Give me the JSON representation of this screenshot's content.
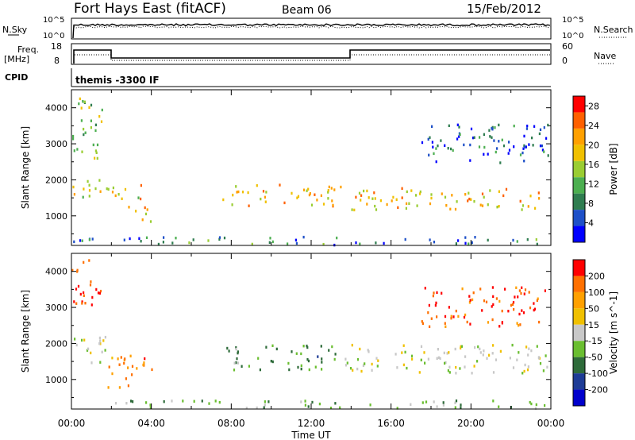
{
  "header": {
    "station": "Fort Hays East (fitACF)",
    "beam": "Beam 06",
    "date": "15/Feb/2012"
  },
  "noise_panel": {
    "left_label": "N.Sky",
    "right_label": "N.Search",
    "left_ticks": [
      "10^5",
      "10^0"
    ],
    "right_ticks": [
      "10^5",
      "10^0"
    ]
  },
  "freq_panel": {
    "left_label_1": "Freq.",
    "left_label_2": "[MHz]",
    "right_label": "Nave",
    "left_ticks": [
      "18",
      "8"
    ],
    "right_ticks": [
      "60",
      "0"
    ]
  },
  "cpid_panel": {
    "label": "CPID",
    "value": "themis -3300 IF"
  },
  "colors": {
    "power": [
      "#0000ff",
      "#1e50c8",
      "#2f7d50",
      "#4caf50",
      "#9acd32",
      "#f0c000",
      "#ffa000",
      "#ff6000",
      "#ff0000"
    ],
    "velocity": [
      "#0000cc",
      "#1e3c96",
      "#2e6b3a",
      "#6abe30",
      "#c8c8c8",
      "#f0c000",
      "#ffa000",
      "#ff7000",
      "#ff0000"
    ]
  },
  "chart_data": [
    {
      "type": "heatmap",
      "title": "",
      "xlabel": "",
      "ylabel": "Slant Range [km]",
      "xlim": [
        "00:00",
        "24:00"
      ],
      "ylim": [
        180,
        4500
      ],
      "yticks": [
        1000,
        2000,
        3000,
        4000
      ],
      "colorbar": {
        "label": "Power [dB]",
        "ticks": [
          4,
          8,
          12,
          16,
          20,
          24,
          28
        ],
        "range": [
          0,
          30
        ]
      },
      "regions": [
        {
          "t0": 0.0,
          "t1": 1.8,
          "r0": 1500,
          "r1": 2100,
          "value": 15
        },
        {
          "t0": 1.8,
          "t1": 3.6,
          "r0": 1400,
          "r1": 1900,
          "value": 18
        },
        {
          "t0": 2.8,
          "t1": 4.0,
          "r0": 800,
          "r1": 1300,
          "value": 22
        },
        {
          "t0": 0.0,
          "t1": 1.5,
          "r0": 2600,
          "r1": 4400,
          "value": 14
        },
        {
          "t0": 7.5,
          "t1": 13.5,
          "r0": 1300,
          "r1": 1900,
          "value": 18
        },
        {
          "t0": 14.0,
          "t1": 24.0,
          "r0": 1200,
          "r1": 1800,
          "value": 20
        },
        {
          "t0": 17.5,
          "t1": 24.0,
          "r0": 2500,
          "r1": 3600,
          "value": 6
        },
        {
          "t0": 0.0,
          "t1": 24.0,
          "r0": 180,
          "r1": 450,
          "value": 8
        }
      ]
    },
    {
      "type": "heatmap",
      "title": "",
      "xlabel": "Time UT",
      "ylabel": "Slant Range [km]",
      "xlim": [
        "00:00",
        "24:00"
      ],
      "ylim": [
        180,
        4500
      ],
      "xticks": [
        "00:00",
        "04:00",
        "08:00",
        "12:00",
        "16:00",
        "20:00",
        "00:00"
      ],
      "yticks": [
        1000,
        2000,
        3000,
        4000
      ],
      "colorbar": {
        "label": "Velocity [m s^-1]",
        "ticks": [
          "200",
          "100",
          "50",
          "15",
          "-15",
          "-50",
          "-100",
          "-200"
        ],
        "range": [
          -250,
          250
        ]
      },
      "regions": [
        {
          "t0": 0.0,
          "t1": 2.0,
          "r0": 1500,
          "r1": 2300,
          "value": 0
        },
        {
          "t0": 1.8,
          "t1": 4.0,
          "r0": 800,
          "r1": 1700,
          "value": 150
        },
        {
          "t0": 0.0,
          "t1": 1.5,
          "r0": 3000,
          "r1": 4400,
          "value": 200
        },
        {
          "t0": 7.5,
          "t1": 13.2,
          "r0": 1300,
          "r1": 2000,
          "value": -80
        },
        {
          "t0": 13.5,
          "t1": 24.0,
          "r0": 1200,
          "r1": 2000,
          "value": 0
        },
        {
          "t0": 17.5,
          "t1": 24.0,
          "r0": 2500,
          "r1": 3600,
          "value": 180
        },
        {
          "t0": 2.0,
          "t1": 24.0,
          "r0": 180,
          "r1": 450,
          "value": -60
        }
      ]
    }
  ]
}
